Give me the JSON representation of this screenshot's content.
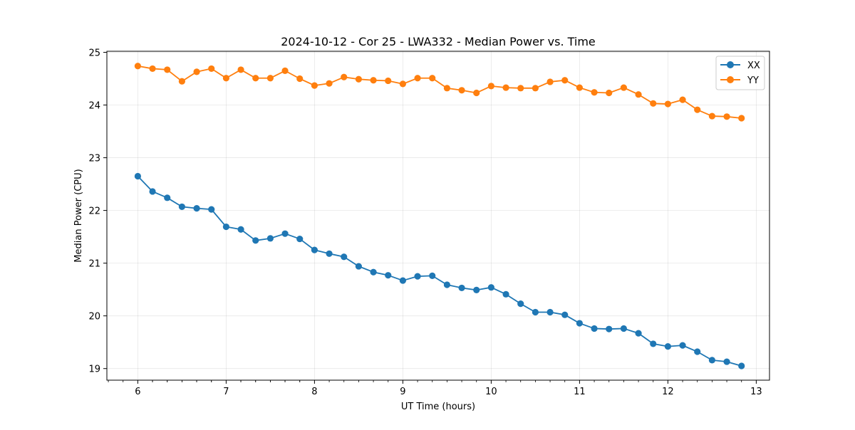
{
  "chart_data": {
    "type": "line",
    "title": "2024-10-12 - Cor 25 - LWA332 - Median Power vs. Time",
    "xlabel": "UT Time (hours)",
    "ylabel": "Median Power (CPU)",
    "xlim": [
      5.65,
      13.15
    ],
    "ylim": [
      18.78,
      25.02
    ],
    "xticks": [
      6,
      7,
      8,
      9,
      10,
      11,
      12,
      13
    ],
    "yticks": [
      19,
      20,
      21,
      22,
      23,
      24,
      25
    ],
    "grid": true,
    "legend_position": "top-right",
    "x": [
      6.0,
      6.1667,
      6.3333,
      6.5,
      6.6667,
      6.8333,
      7.0,
      7.1667,
      7.3333,
      7.5,
      7.6667,
      7.8333,
      8.0,
      8.1667,
      8.3333,
      8.5,
      8.6667,
      8.8333,
      9.0,
      9.1667,
      9.3333,
      9.5,
      9.6667,
      9.8333,
      10.0,
      10.1667,
      10.3333,
      10.5,
      10.6667,
      10.8333,
      11.0,
      11.1667,
      11.3333,
      11.5,
      11.6667,
      11.8333,
      12.0,
      12.1667,
      12.3333,
      12.5,
      12.6667,
      12.8333
    ],
    "series": [
      {
        "name": "XX",
        "color": "#1f77b4",
        "values": [
          22.65,
          22.36,
          22.24,
          22.07,
          22.04,
          22.02,
          21.69,
          21.64,
          21.43,
          21.47,
          21.56,
          21.46,
          21.25,
          21.18,
          21.12,
          20.94,
          20.83,
          20.77,
          20.67,
          20.75,
          20.76,
          20.59,
          20.53,
          20.49,
          20.54,
          20.41,
          20.23,
          20.07,
          20.07,
          20.02,
          19.86,
          19.76,
          19.75,
          19.76,
          19.67,
          19.47,
          19.42,
          19.44,
          19.32,
          19.16,
          19.13,
          19.05
        ]
      },
      {
        "name": "YY",
        "color": "#ff7f0e",
        "values": [
          24.74,
          24.69,
          24.67,
          24.45,
          24.63,
          24.69,
          24.51,
          24.67,
          24.51,
          24.51,
          24.65,
          24.5,
          24.37,
          24.41,
          24.53,
          24.49,
          24.47,
          24.46,
          24.4,
          24.51,
          24.51,
          24.32,
          24.28,
          24.23,
          24.36,
          24.33,
          24.32,
          24.32,
          24.44,
          24.47,
          24.33,
          24.24,
          24.23,
          24.33,
          24.2,
          24.03,
          24.02,
          24.1,
          23.91,
          23.79,
          23.78,
          23.75
        ]
      }
    ]
  }
}
